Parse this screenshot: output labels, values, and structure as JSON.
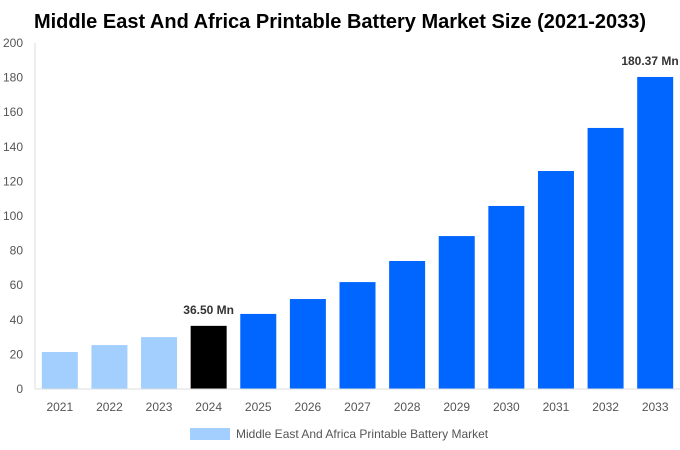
{
  "chart_data": {
    "type": "bar",
    "title": "Middle East And Africa Printable Battery Market Size (2021-2033)",
    "categories": [
      "2021",
      "2022",
      "2023",
      "2024",
      "2025",
      "2026",
      "2027",
      "2028",
      "2029",
      "2030",
      "2031",
      "2032",
      "2033"
    ],
    "series": [
      {
        "name": "Middle East And Africa Printable Battery Market",
        "values": [
          21.4,
          25.4,
          30.0,
          36.5,
          43.4,
          52.0,
          61.8,
          74.0,
          88.4,
          105.8,
          126.0,
          150.9,
          180.37
        ]
      }
    ],
    "data_labels": {
      "3": "36.50 Mn",
      "12": "180.37 Mn"
    },
    "ylim": [
      0,
      200
    ],
    "yticks": [
      "0",
      "20",
      "40",
      "60",
      "80",
      "100",
      "120",
      "140",
      "160",
      "180",
      "200"
    ],
    "grid": false,
    "legend": "bottom",
    "colors": {
      "historical": "#a3cfff",
      "base_year": "#000000",
      "forecast": "#0066ff"
    },
    "base_year_index": 3
  }
}
